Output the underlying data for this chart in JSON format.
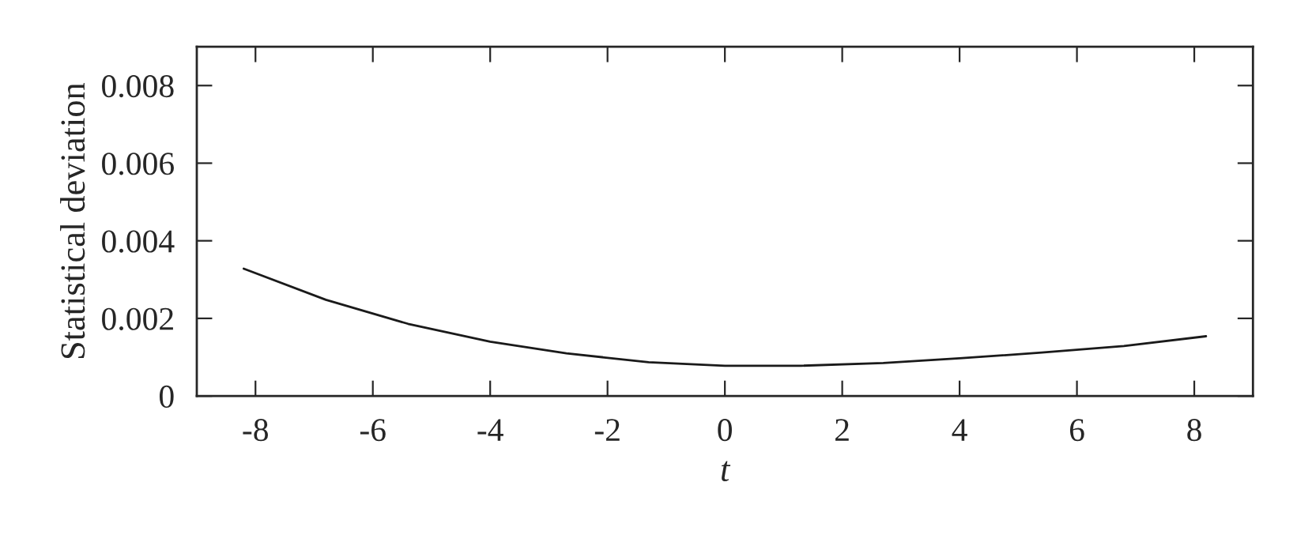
{
  "chart_data": {
    "type": "line",
    "xlabel": "t",
    "ylabel": "Statistical deviation",
    "x": [
      -8.2,
      -6.8,
      -5.4,
      -4.0,
      -2.7,
      -1.3,
      0.0,
      1.3,
      2.7,
      4.0,
      5.4,
      6.8,
      8.2
    ],
    "series": [
      {
        "color": "#1a1a1a",
        "values": [
          0.00328,
          0.00248,
          0.00186,
          0.0014,
          0.0011,
          0.00087,
          0.00078,
          0.00078,
          0.00085,
          0.00097,
          0.00112,
          0.00129,
          0.00154
        ]
      }
    ],
    "xlim": [
      -9,
      9
    ],
    "xticks": [
      -8,
      -6,
      -4,
      -2,
      0,
      2,
      4,
      6,
      8
    ],
    "ylim": [
      0,
      0.009
    ],
    "yticks": [
      0,
      0.002,
      0.004,
      0.006,
      0.008
    ],
    "grid": false,
    "legend": false,
    "marker": "none",
    "line_style": "solid"
  }
}
